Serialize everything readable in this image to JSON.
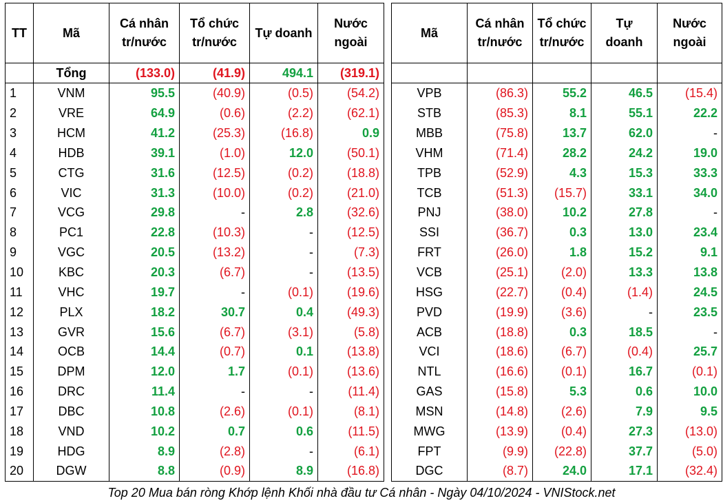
{
  "left_headers": [
    "TT",
    "Mã",
    "Cá nhân\ntr/nước",
    "Tổ chức\ntr/nước",
    "Tự doanh",
    "Nước\nngoài"
  ],
  "right_headers": [
    "Mã",
    "Cá nhân\ntr/nước",
    "Tổ chức\ntr/nước",
    "Tự\ndoanh",
    "Nước\nngoài"
  ],
  "total": {
    "label": "Tổng",
    "values": [
      "(133.0)",
      "(41.9)",
      "494.1",
      "(319.1)"
    ]
  },
  "left_rows": [
    [
      "1",
      "VNM",
      "95.5",
      "(40.9)",
      "(0.5)",
      "(54.2)"
    ],
    [
      "2",
      "VRE",
      "64.9",
      "(0.6)",
      "(2.2)",
      "(62.1)"
    ],
    [
      "3",
      "HCM",
      "41.2",
      "(25.3)",
      "(16.8)",
      "0.9"
    ],
    [
      "4",
      "HDB",
      "39.1",
      "(1.0)",
      "12.0",
      "(50.1)"
    ],
    [
      "5",
      "CTG",
      "31.6",
      "(12.5)",
      "(0.2)",
      "(18.8)"
    ],
    [
      "6",
      "VIC",
      "31.3",
      "(10.0)",
      "(0.2)",
      "(21.0)"
    ],
    [
      "7",
      "VCG",
      "29.8",
      "-",
      "2.8",
      "(32.6)"
    ],
    [
      "8",
      "PC1",
      "22.8",
      "(10.3)",
      "-",
      "(12.5)"
    ],
    [
      "9",
      "VGC",
      "20.5",
      "(13.2)",
      "-",
      "(7.3)"
    ],
    [
      "10",
      "KBC",
      "20.3",
      "(6.7)",
      "-",
      "(13.5)"
    ],
    [
      "11",
      "VHC",
      "19.7",
      "-",
      "(0.1)",
      "(19.6)"
    ],
    [
      "12",
      "PLX",
      "18.2",
      "30.7",
      "0.4",
      "(49.3)"
    ],
    [
      "13",
      "GVR",
      "15.6",
      "(6.7)",
      "(3.1)",
      "(5.8)"
    ],
    [
      "14",
      "OCB",
      "14.4",
      "(0.7)",
      "0.1",
      "(13.8)"
    ],
    [
      "15",
      "DPM",
      "12.0",
      "1.7",
      "(0.1)",
      "(13.6)"
    ],
    [
      "16",
      "DRC",
      "11.4",
      "-",
      "-",
      "(11.4)"
    ],
    [
      "17",
      "DBC",
      "10.8",
      "(2.6)",
      "(0.1)",
      "(8.1)"
    ],
    [
      "18",
      "VND",
      "10.2",
      "0.7",
      "0.6",
      "(11.5)"
    ],
    [
      "19",
      "HDG",
      "8.9",
      "(2.8)",
      "-",
      "(6.1)"
    ],
    [
      "20",
      "DGW",
      "8.8",
      "(0.9)",
      "8.9",
      "(16.8)"
    ]
  ],
  "right_rows": [
    [
      "VPB",
      "(86.3)",
      "55.2",
      "46.5",
      "(15.4)"
    ],
    [
      "STB",
      "(85.3)",
      "8.1",
      "55.1",
      "22.2"
    ],
    [
      "MBB",
      "(75.8)",
      "13.7",
      "62.0",
      "-"
    ],
    [
      "VHM",
      "(71.4)",
      "28.2",
      "24.2",
      "19.0"
    ],
    [
      "TPB",
      "(52.9)",
      "4.3",
      "15.3",
      "33.3"
    ],
    [
      "TCB",
      "(51.3)",
      "(15.7)",
      "33.1",
      "34.0"
    ],
    [
      "PNJ",
      "(38.0)",
      "10.2",
      "27.8",
      "-"
    ],
    [
      "SSI",
      "(36.7)",
      "0.3",
      "13.0",
      "23.4"
    ],
    [
      "FRT",
      "(26.0)",
      "1.8",
      "15.2",
      "9.1"
    ],
    [
      "VCB",
      "(25.1)",
      "(2.0)",
      "13.3",
      "13.8"
    ],
    [
      "HSG",
      "(22.7)",
      "(0.4)",
      "(1.4)",
      "24.5"
    ],
    [
      "PVD",
      "(19.9)",
      "(3.6)",
      "-",
      "23.5"
    ],
    [
      "ACB",
      "(18.8)",
      "0.3",
      "18.5",
      "-"
    ],
    [
      "VCI",
      "(18.6)",
      "(6.7)",
      "(0.4)",
      "25.7"
    ],
    [
      "NTL",
      "(16.6)",
      "(0.1)",
      "16.7",
      "(0.1)"
    ],
    [
      "GAS",
      "(15.8)",
      "5.3",
      "0.6",
      "10.0"
    ],
    [
      "MSN",
      "(14.8)",
      "(2.6)",
      "7.9",
      "9.5"
    ],
    [
      "MWG",
      "(13.9)",
      "(0.4)",
      "27.3",
      "(13.0)"
    ],
    [
      "FPT",
      "(9.9)",
      "(22.8)",
      "37.7",
      "(5.0)"
    ],
    [
      "DGC",
      "(8.7)",
      "24.0",
      "17.1",
      "(32.4)"
    ]
  ],
  "caption": "Top 20 Mua bán ròng Khớp lệnh Khối nhà đầu tư Cá nhân - Ngày 04/10/2024 - VNIStock.net",
  "colors": {
    "positive": "#13a040",
    "negative": "#e0141e"
  }
}
